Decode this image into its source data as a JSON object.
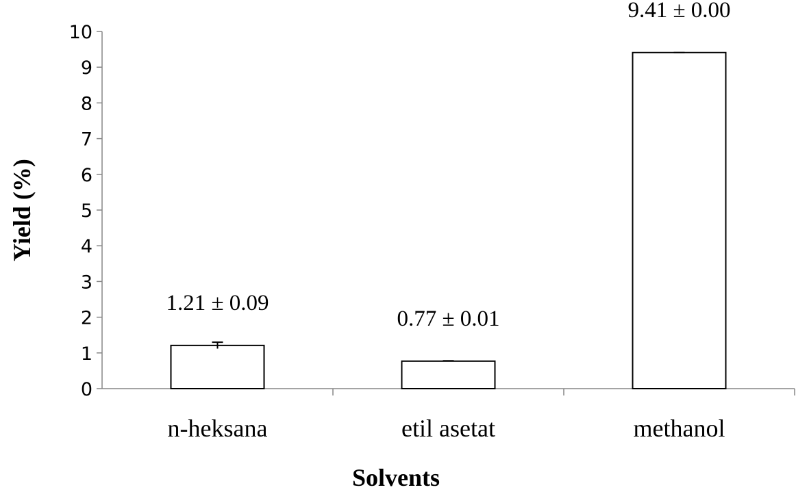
{
  "chart_data": {
    "type": "bar",
    "categories": [
      "n-heksana",
      "etil asetat",
      "methanol"
    ],
    "values": [
      1.21,
      0.77,
      9.41
    ],
    "errors": [
      0.09,
      0.01,
      0.0
    ],
    "data_labels": [
      "1.21 ± 0.09",
      "0.77 ± 0.01",
      "9.41 ± 0.00"
    ],
    "xlabel": "Solvents",
    "ylabel": "Yield (%)",
    "ylim": [
      0,
      10
    ],
    "yticks": [
      0,
      1,
      2,
      3,
      4,
      5,
      6,
      7,
      8,
      9,
      10
    ],
    "grid": false,
    "legend": "none",
    "bar_fill": "#ffffff",
    "bar_stroke": "#000000"
  }
}
